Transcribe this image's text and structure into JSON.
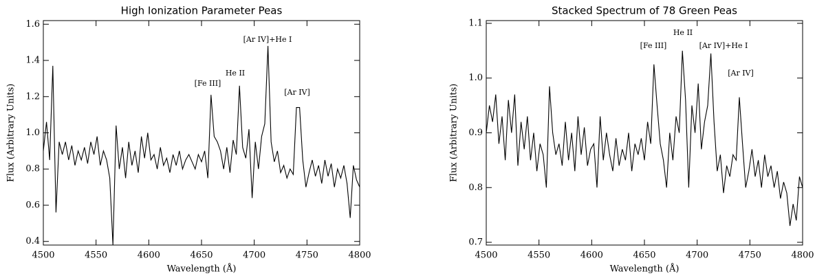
{
  "chart_data": [
    {
      "type": "line",
      "title": "High Ionization Parameter Peas",
      "xlabel": "Wavelength (Å)",
      "ylabel": "Flux (Arbitrary Units)",
      "color": "#000000",
      "x": [
        4500,
        4503,
        4506,
        4509,
        4512,
        4515,
        4518,
        4521,
        4524,
        4527,
        4530,
        4533,
        4536,
        4539,
        4542,
        4545,
        4548,
        4551,
        4554,
        4557,
        4560,
        4563,
        4566,
        4569,
        4572,
        4575,
        4578,
        4581,
        4584,
        4587,
        4590,
        4593,
        4596,
        4599,
        4602,
        4605,
        4608,
        4611,
        4614,
        4617,
        4620,
        4623,
        4626,
        4629,
        4632,
        4635,
        4638,
        4641,
        4644,
        4647,
        4650,
        4653,
        4656,
        4659,
        4662,
        4665,
        4668,
        4671,
        4674,
        4677,
        4680,
        4683,
        4686,
        4689,
        4692,
        4695,
        4698,
        4701,
        4704,
        4707,
        4710,
        4713,
        4716,
        4719,
        4722,
        4725,
        4728,
        4731,
        4734,
        4737,
        4740,
        4743,
        4746,
        4749,
        4752,
        4755,
        4758,
        4761,
        4764,
        4767,
        4770,
        4773,
        4776,
        4779,
        4782,
        4785,
        4788,
        4791,
        4794,
        4797,
        4800
      ],
      "values": [
        0.9,
        1.06,
        0.85,
        1.37,
        0.56,
        0.95,
        0.88,
        0.95,
        0.85,
        0.93,
        0.82,
        0.9,
        0.85,
        0.92,
        0.83,
        0.95,
        0.88,
        0.98,
        0.82,
        0.9,
        0.85,
        0.75,
        0.38,
        1.04,
        0.8,
        0.92,
        0.75,
        0.95,
        0.82,
        0.9,
        0.78,
        0.98,
        0.86,
        1.0,
        0.85,
        0.88,
        0.8,
        0.92,
        0.82,
        0.86,
        0.78,
        0.88,
        0.82,
        0.9,
        0.8,
        0.85,
        0.88,
        0.84,
        0.8,
        0.88,
        0.84,
        0.9,
        0.75,
        1.21,
        0.98,
        0.95,
        0.9,
        0.8,
        0.92,
        0.78,
        0.96,
        0.88,
        1.26,
        0.92,
        0.86,
        1.02,
        0.64,
        0.95,
        0.8,
        0.98,
        1.05,
        1.48,
        0.95,
        0.84,
        0.9,
        0.78,
        0.82,
        0.75,
        0.8,
        0.77,
        1.14,
        1.14,
        0.85,
        0.7,
        0.78,
        0.85,
        0.76,
        0.82,
        0.72,
        0.85,
        0.76,
        0.83,
        0.7,
        0.8,
        0.75,
        0.82,
        0.72,
        0.53,
        0.82,
        0.74,
        0.7
      ],
      "xlim": [
        4500,
        4800
      ],
      "xticks": [
        4500,
        4550,
        4600,
        4650,
        4700,
        4750,
        4800
      ],
      "ylim": [
        0.38,
        1.62
      ],
      "yticks": [
        0.4,
        0.6,
        0.8,
        {
          "value": 1,
          "label": "1.0"
        },
        1.2,
        1.4,
        1.6
      ],
      "annotations": [
        "[Fe III]",
        "He II",
        "[Ar IV]+He I",
        "[Ar IV]"
      ]
    },
    {
      "type": "line",
      "title": "Stacked Spectrum of 78 Green Peas",
      "xlabel": "Wavelength (Å)",
      "ylabel": "Flux (Arbitrary Units)",
      "color": "#000000",
      "x": [
        4500,
        4503,
        4506,
        4509,
        4512,
        4515,
        4518,
        4521,
        4524,
        4527,
        4530,
        4533,
        4536,
        4539,
        4542,
        4545,
        4548,
        4551,
        4554,
        4557,
        4560,
        4563,
        4566,
        4569,
        4572,
        4575,
        4578,
        4581,
        4584,
        4587,
        4590,
        4593,
        4596,
        4599,
        4602,
        4605,
        4608,
        4611,
        4614,
        4617,
        4620,
        4623,
        4626,
        4629,
        4632,
        4635,
        4638,
        4641,
        4644,
        4647,
        4650,
        4653,
        4656,
        4659,
        4662,
        4665,
        4668,
        4671,
        4674,
        4677,
        4680,
        4683,
        4686,
        4689,
        4692,
        4695,
        4698,
        4701,
        4704,
        4707,
        4710,
        4713,
        4716,
        4719,
        4722,
        4725,
        4728,
        4731,
        4734,
        4737,
        4740,
        4743,
        4746,
        4749,
        4752,
        4755,
        4758,
        4761,
        4764,
        4767,
        4770,
        4773,
        4776,
        4779,
        4782,
        4785,
        4788,
        4791,
        4794,
        4797,
        4800
      ],
      "values": [
        0.9,
        0.95,
        0.92,
        0.97,
        0.88,
        0.93,
        0.85,
        0.96,
        0.9,
        0.97,
        0.84,
        0.92,
        0.87,
        0.93,
        0.85,
        0.9,
        0.83,
        0.88,
        0.86,
        0.8,
        0.985,
        0.9,
        0.86,
        0.88,
        0.84,
        0.92,
        0.85,
        0.9,
        0.83,
        0.93,
        0.86,
        0.91,
        0.84,
        0.87,
        0.88,
        0.8,
        0.93,
        0.85,
        0.9,
        0.86,
        0.83,
        0.89,
        0.84,
        0.87,
        0.85,
        0.9,
        0.83,
        0.88,
        0.86,
        0.89,
        0.85,
        0.92,
        0.88,
        1.025,
        0.95,
        0.88,
        0.85,
        0.8,
        0.9,
        0.85,
        0.93,
        0.9,
        1.05,
        0.96,
        0.8,
        0.95,
        0.9,
        0.99,
        0.87,
        0.92,
        0.95,
        1.045,
        0.92,
        0.83,
        0.86,
        0.79,
        0.84,
        0.82,
        0.86,
        0.85,
        0.965,
        0.88,
        0.8,
        0.83,
        0.87,
        0.82,
        0.85,
        0.8,
        0.86,
        0.82,
        0.84,
        0.8,
        0.83,
        0.78,
        0.81,
        0.79,
        0.73,
        0.77,
        0.74,
        0.82,
        0.8
      ],
      "xlim": [
        4500,
        4800
      ],
      "xticks": [
        4500,
        4550,
        4600,
        4650,
        4700,
        4750,
        4800
      ],
      "ylim": [
        0.695,
        1.105
      ],
      "yticks": [
        0.7,
        0.8,
        0.9,
        {
          "value": 1,
          "label": "1.0"
        },
        1.1
      ],
      "annotations": [
        "[Fe III]",
        "He II",
        "[Ar IV]+He I",
        "[Ar IV]"
      ]
    }
  ]
}
